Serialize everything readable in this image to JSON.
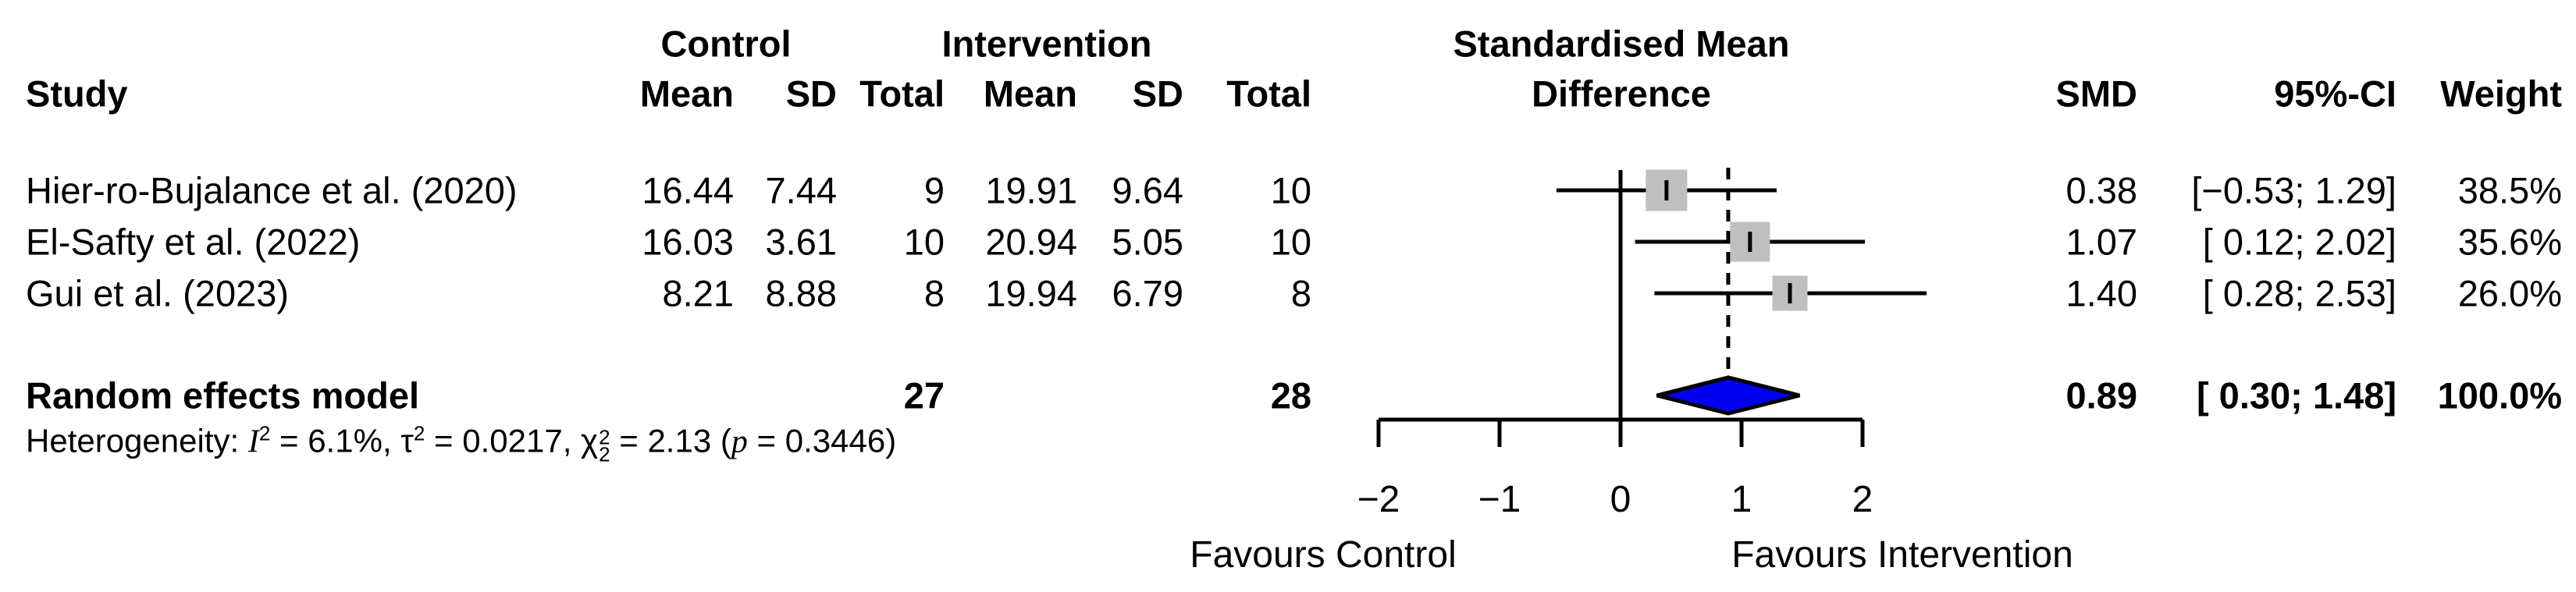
{
  "headers": {
    "study": "Study",
    "control_group": "Control",
    "intervention_group": "Intervention",
    "mean": "Mean",
    "sd": "SD",
    "total": "Total",
    "effect_line1": "Standardised Mean",
    "effect_line2": "Difference",
    "smd": "SMD",
    "ci": "95%-CI",
    "weight": "Weight"
  },
  "chart_data": {
    "type": "forest",
    "effect_measure": "Standardised Mean Difference",
    "studies": [
      {
        "study": "Hier-ro-Bujalance et al. (2020)",
        "control": {
          "mean": "16.44",
          "sd": "7.44",
          "total": "9"
        },
        "intervention": {
          "mean": "19.91",
          "sd": "9.64",
          "total": "10"
        },
        "smd": 0.38,
        "smd_text": "0.38",
        "ci_low": -0.53,
        "ci_high": 1.29,
        "ci_text": "[−0.53; 1.29]",
        "weight": 38.5,
        "weight_text": "38.5%"
      },
      {
        "study": "El-Safty et al. (2022)",
        "control": {
          "mean": "16.03",
          "sd": "3.61",
          "total": "10"
        },
        "intervention": {
          "mean": "20.94",
          "sd": "5.05",
          "total": "10"
        },
        "smd": 1.07,
        "smd_text": "1.07",
        "ci_low": 0.12,
        "ci_high": 2.02,
        "ci_text": "[ 0.12; 2.02]",
        "weight": 35.6,
        "weight_text": "35.6%"
      },
      {
        "study": "Gui et al. (2023)",
        "control": {
          "mean": "8.21",
          "sd": "8.88",
          "total": "8"
        },
        "intervention": {
          "mean": "19.94",
          "sd": "6.79",
          "total": "8"
        },
        "smd": 1.4,
        "smd_text": "1.40",
        "ci_low": 0.28,
        "ci_high": 2.53,
        "ci_text": "[ 0.28; 2.53]",
        "weight": 26.0,
        "weight_text": "26.0%"
      }
    ],
    "pooled": {
      "label": "Random effects model",
      "control_total": "27",
      "intervention_total": "28",
      "smd": 0.89,
      "smd_text": "0.89",
      "ci_low": 0.3,
      "ci_high": 1.48,
      "ci_text": "[ 0.30; 1.48]",
      "weight_text": "100.0%"
    },
    "heterogeneity": {
      "prefix": "Heterogeneity: ",
      "i2": "6.1%",
      "tau2": "0.0217",
      "chi2": "2.13",
      "df": "2",
      "p": "0.3446"
    },
    "axis": {
      "xmin": -2,
      "xmax": 2,
      "ticks": [
        -2,
        -1,
        0,
        1,
        2
      ],
      "tick_labels": [
        "−2",
        "−1",
        "0",
        "1",
        "2"
      ],
      "null_line": 0,
      "grid": false,
      "favours_left": "Favours Control",
      "favours_right": "Favours Intervention"
    },
    "colors": {
      "square": "#bfbfbf",
      "diamond": "#0000ee",
      "line": "#000000"
    }
  }
}
